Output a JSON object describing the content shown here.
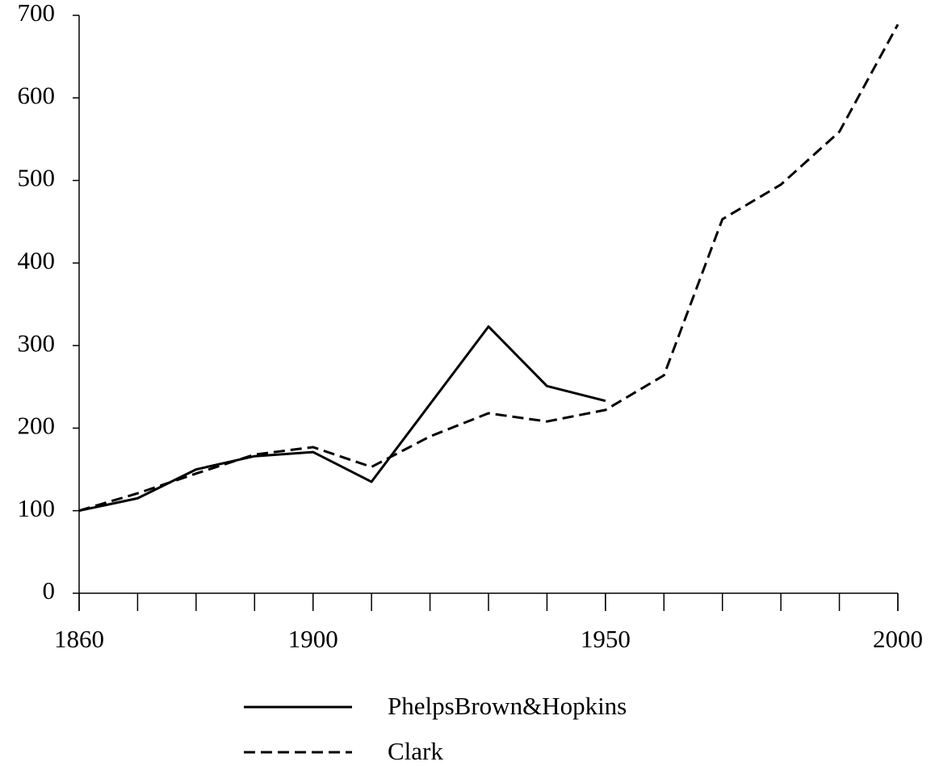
{
  "chart_data": {
    "type": "line",
    "xlim": [
      1860,
      2000
    ],
    "xticks": [
      1860,
      1900,
      1950,
      2000
    ],
    "ylim": [
      0,
      700
    ],
    "yticks": [
      0,
      100,
      200,
      300,
      400,
      500,
      600,
      700
    ],
    "series": [
      {
        "name": "PhelpsBrown&Hopkins",
        "color": "#000000",
        "dash": "solid",
        "x": [
          1860,
          1870,
          1880,
          1890,
          1900,
          1910,
          1930,
          1940,
          1950
        ],
        "values": [
          100,
          115,
          150,
          166,
          171,
          135,
          323,
          251,
          233
        ]
      },
      {
        "name": "Clark",
        "color": "#000000",
        "dash": "dashed",
        "x": [
          1860,
          1870,
          1880,
          1890,
          1900,
          1910,
          1920,
          1930,
          1940,
          1950,
          1960,
          1970,
          1980,
          1990,
          2000
        ],
        "values": [
          100,
          121,
          145,
          168,
          177,
          153,
          190,
          218,
          208,
          222,
          264,
          453,
          495,
          559,
          689
        ]
      }
    ],
    "legend": "bottom"
  }
}
